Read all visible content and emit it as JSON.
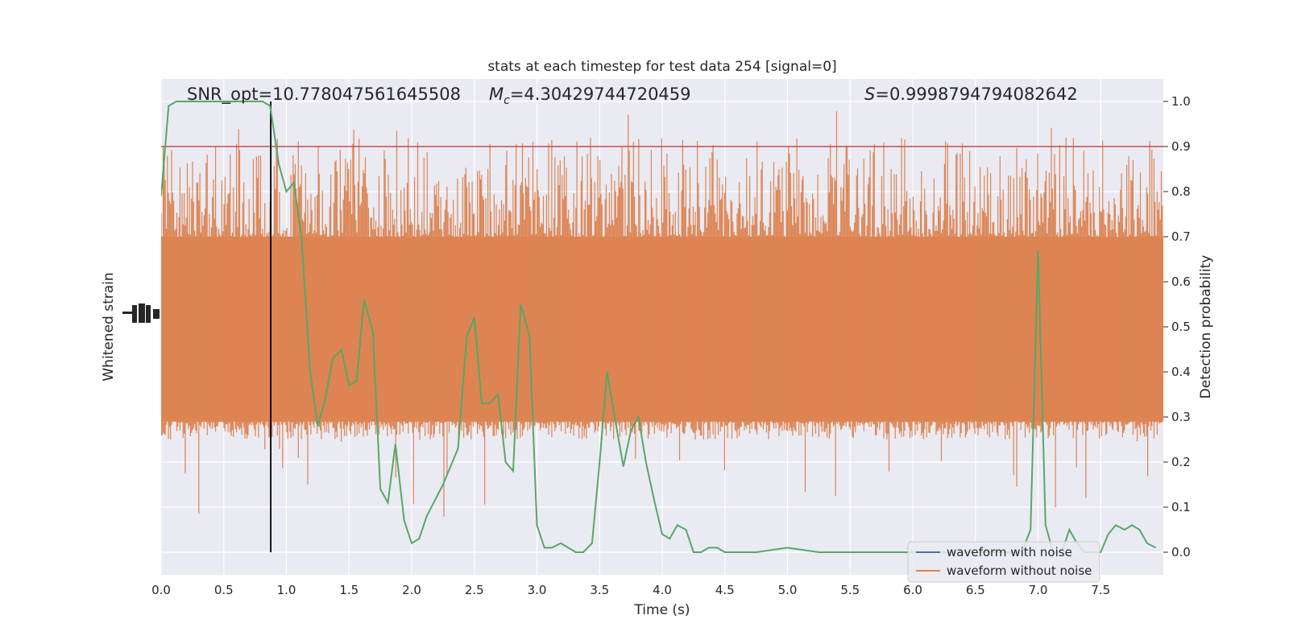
{
  "chart_data": {
    "type": "line",
    "title": "stats at each timestep for test data 254 [signal=0]",
    "xlabel": "Time (s)",
    "ylabel_left": "Whitened strain",
    "ylabel_right": "Detection probability",
    "xlim": [
      0.0,
      8.0
    ],
    "ylim_right": [
      -0.05,
      1.05
    ],
    "x_ticks": [
      "0.0",
      "0.5",
      "1.0",
      "1.5",
      "2.0",
      "2.5",
      "3.0",
      "3.5",
      "4.0",
      "4.5",
      "5.0",
      "5.5",
      "6.0",
      "6.5",
      "7.0",
      "7.5"
    ],
    "y_ticks_right": [
      "0.0",
      "0.1",
      "0.2",
      "0.3",
      "0.4",
      "0.5",
      "0.6",
      "0.7",
      "0.8",
      "0.9",
      "1.0"
    ],
    "annotations": {
      "snr": "SNR_opt=10.778047561645508",
      "mc_symbol": "M",
      "mc_sub": "c",
      "mc_value": "=4.30429744720459",
      "s_symbol": "S",
      "s_value": "=0.9998794794082642"
    },
    "threshold": 0.9,
    "marker_time": 0.875,
    "legend": {
      "placement": "lower-right",
      "entries": [
        {
          "label": "waveform with noise",
          "color": "#4c72b0"
        },
        {
          "label": "waveform without noise",
          "color": "#dd8452"
        }
      ]
    },
    "series": [
      {
        "name": "Detection probability",
        "color": "#55a868",
        "x": [
          0.0,
          0.06,
          0.12,
          0.25,
          0.5,
          0.75,
          0.81,
          0.87,
          0.94,
          1.0,
          1.06,
          1.12,
          1.19,
          1.25,
          1.31,
          1.37,
          1.44,
          1.5,
          1.56,
          1.62,
          1.69,
          1.75,
          1.81,
          1.87,
          1.94,
          2.0,
          2.06,
          2.12,
          2.25,
          2.37,
          2.44,
          2.5,
          2.56,
          2.62,
          2.69,
          2.75,
          2.81,
          2.87,
          2.94,
          3.0,
          3.06,
          3.12,
          3.19,
          3.25,
          3.31,
          3.37,
          3.44,
          3.5,
          3.56,
          3.62,
          3.69,
          3.75,
          3.81,
          3.87,
          3.94,
          4.0,
          4.06,
          4.12,
          4.19,
          4.25,
          4.31,
          4.37,
          4.44,
          4.5,
          4.75,
          5.0,
          5.25,
          5.5,
          5.75,
          6.0,
          6.25,
          6.5,
          6.75,
          6.87,
          6.94,
          7.0,
          7.06,
          7.12,
          7.19,
          7.25,
          7.31,
          7.37,
          7.44,
          7.5,
          7.56,
          7.62,
          7.69,
          7.75,
          7.81,
          7.87,
          7.94
        ],
        "y": [
          0.79,
          0.99,
          1.0,
          1.0,
          1.0,
          1.0,
          1.0,
          0.99,
          0.86,
          0.8,
          0.82,
          0.7,
          0.4,
          0.28,
          0.34,
          0.43,
          0.45,
          0.37,
          0.38,
          0.56,
          0.49,
          0.14,
          0.11,
          0.24,
          0.07,
          0.02,
          0.03,
          0.08,
          0.15,
          0.23,
          0.48,
          0.52,
          0.33,
          0.33,
          0.35,
          0.2,
          0.18,
          0.55,
          0.48,
          0.06,
          0.01,
          0.01,
          0.02,
          0.01,
          0.0,
          0.0,
          0.02,
          0.2,
          0.4,
          0.3,
          0.19,
          0.27,
          0.3,
          0.2,
          0.11,
          0.04,
          0.03,
          0.06,
          0.05,
          0.0,
          0.0,
          0.01,
          0.01,
          0.0,
          0.0,
          0.01,
          0.0,
          0.0,
          0.0,
          0.0,
          0.0,
          0.0,
          0.0,
          0.0,
          0.05,
          0.67,
          0.06,
          0.0,
          0.0,
          0.05,
          0.02,
          0.0,
          0.0,
          0.0,
          0.04,
          0.06,
          0.05,
          0.06,
          0.05,
          0.02,
          0.01
        ]
      },
      {
        "name": "waveform without noise",
        "color": "#dd8452",
        "noise_band_probability_axis": [
          0.25,
          0.92
        ],
        "note_values": "dense noise band spanning roughly the whole time range"
      }
    ]
  }
}
